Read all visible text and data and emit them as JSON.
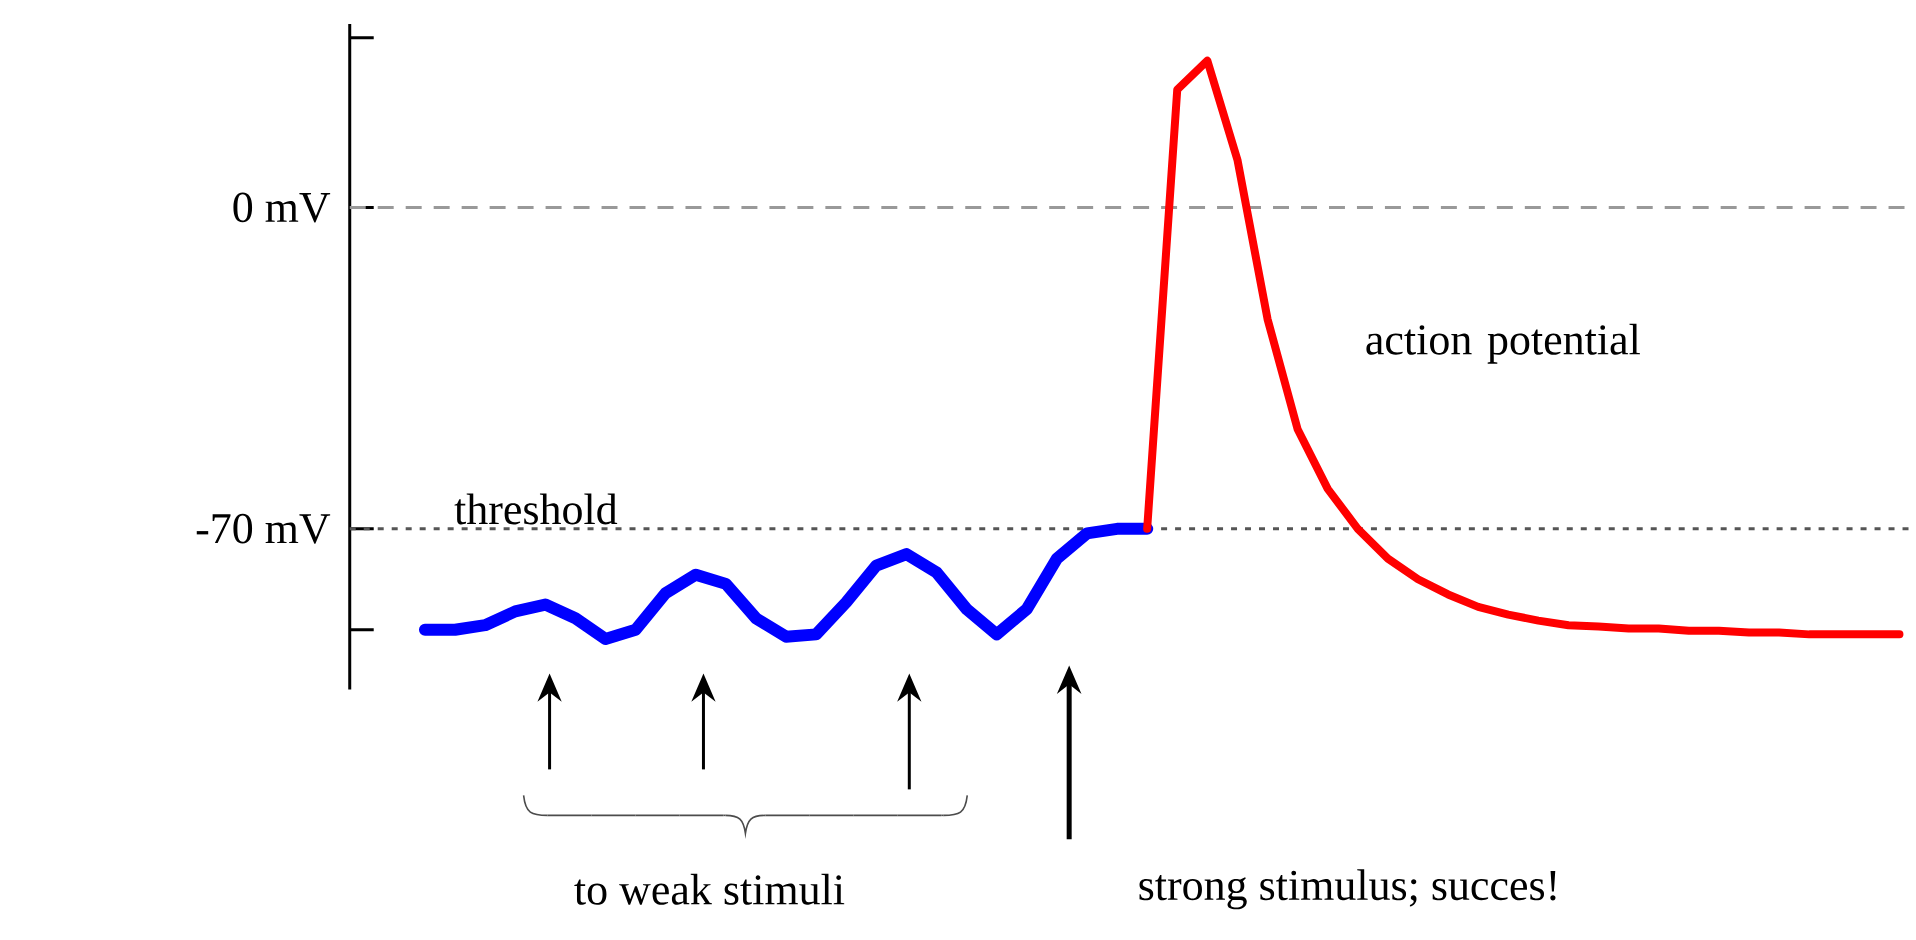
{
  "chart_data": {
    "type": "line",
    "categories": [
      null,
      null,
      null,
      null,
      null,
      null,
      null,
      null,
      null,
      null,
      null,
      null,
      null,
      null,
      null,
      null,
      null,
      null,
      null,
      null,
      null,
      null,
      null,
      null,
      null,
      null,
      null,
      null,
      null,
      null,
      null,
      null,
      null,
      null,
      null,
      null,
      null,
      null,
      null,
      null,
      null,
      null,
      null,
      null,
      null,
      null,
      null,
      null,
      null,
      null,
      null,
      null
    ],
    "series": [
      {
        "color": "#0000ff",
        "values": [
          null,
          null,
          -92,
          -92,
          -91,
          -88,
          -86.5,
          -89.5,
          -94,
          -92,
          -84,
          -80,
          -82,
          -89.5,
          -93.5,
          -93,
          -86,
          -78,
          -75.5,
          -79.5,
          -87.5,
          -93,
          -87.5,
          -76.5,
          -71,
          -70,
          -70,
          null,
          null,
          null,
          null,
          null,
          null,
          null,
          null,
          null,
          null,
          null,
          null,
          null,
          null,
          null,
          null,
          null,
          null,
          null,
          null,
          null,
          null,
          null,
          null,
          null
        ]
      },
      {
        "color": "#ff0000",
        "values": [
          null,
          null,
          null,
          null,
          null,
          null,
          null,
          null,
          null,
          null,
          null,
          null,
          null,
          null,
          null,
          null,
          null,
          null,
          null,
          null,
          null,
          null,
          null,
          null,
          null,
          null,
          -70,
          25.7,
          32,
          10.4,
          -24.3,
          -48.3,
          -61.3,
          -70,
          -76.5,
          -81,
          -84.3,
          -87,
          -88.7,
          -90,
          -91,
          -91.3,
          -91.7,
          -91.7,
          -92.2,
          -92.2,
          -92.6,
          -92.6,
          -93,
          -93,
          -93,
          -93
        ]
      }
    ],
    "ylim": [
      -105,
      40
    ],
    "yticks": [
      {
        "value": -92,
        "label": null
      },
      {
        "value": -70,
        "label": "-70 mV"
      },
      {
        "value": 0,
        "label": "0 mV"
      },
      {
        "value": 37,
        "label": null
      }
    ],
    "tick_labels": "y",
    "marker": "none",
    "line_style": "solid",
    "grid": false,
    "ref_lines": [
      {
        "axis": "y",
        "value": 0,
        "line_style": "dashed",
        "color": "#999999"
      },
      {
        "axis": "y",
        "value": -70,
        "label": "threshold",
        "line_style": "dotted",
        "color": "#555555"
      }
    ],
    "annotations": [
      "action potential",
      "to weak stimuli",
      "strong stimulus; succes!"
    ]
  }
}
